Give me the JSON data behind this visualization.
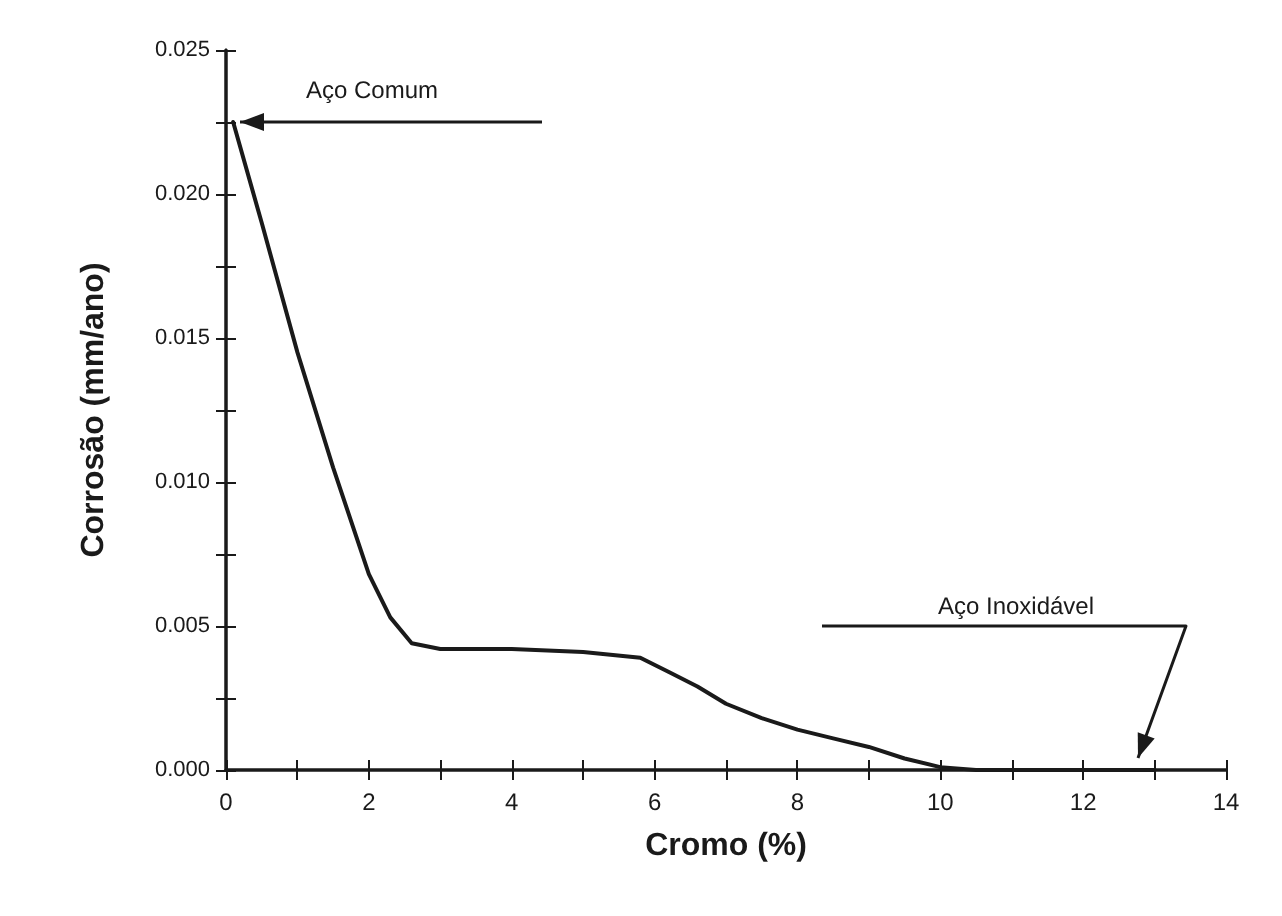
{
  "chart_data": {
    "type": "line",
    "xlabel": "Cromo (%)",
    "ylabel": "Corrosão (mm/ano)",
    "x": [
      0.1,
      0.5,
      1,
      1.5,
      2,
      2.3,
      2.6,
      3,
      4,
      5,
      5.8,
      6.2,
      6.6,
      7,
      7.5,
      8,
      8.5,
      9,
      9.5,
      10,
      10.5,
      11,
      12,
      13
    ],
    "series": [
      {
        "color": "#1a1a1a",
        "values": [
          0.0225,
          0.019,
          0.0145,
          0.0105,
          0.0068,
          0.0053,
          0.0044,
          0.0042,
          0.0042,
          0.0041,
          0.0039,
          0.0034,
          0.0029,
          0.0023,
          0.0018,
          0.0014,
          0.0011,
          0.0008,
          0.0004,
          0.0001,
          0.0,
          0.0,
          0.0,
          0.0
        ]
      }
    ],
    "xlim": [
      0,
      14
    ],
    "xticks": [
      0,
      2,
      4,
      6,
      8,
      10,
      12,
      14
    ],
    "ylim": [
      0,
      0.025
    ],
    "yticks": [
      {
        "value": 0,
        "label": "0.000"
      },
      0.005,
      {
        "value": 0.01,
        "label": "0.010"
      },
      0.015,
      {
        "value": 0.02,
        "label": "0.020"
      },
      0.025
    ],
    "grid": false,
    "marker": "none",
    "line_style": "solid",
    "annotations": [
      "Aço Comum",
      "Aço Inoxidável"
    ]
  }
}
